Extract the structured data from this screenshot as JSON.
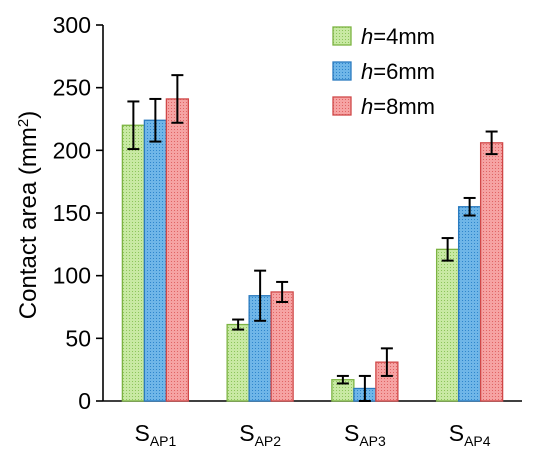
{
  "chart_data": {
    "type": "bar",
    "ylabel": "Contact area (mm²)",
    "ylabel_parts": {
      "main": "Contact area (mm",
      "sup": "2",
      "close": ")"
    },
    "ylim": [
      0,
      300
    ],
    "yticks": [
      0,
      50,
      100,
      150,
      200,
      250,
      300
    ],
    "grid": false,
    "legend_position": "top-right",
    "categories": [
      {
        "main": "S",
        "sub": "AP1"
      },
      {
        "main": "S",
        "sub": "AP2"
      },
      {
        "main": "S",
        "sub": "AP3"
      },
      {
        "main": "S",
        "sub": "AP4"
      }
    ],
    "series": [
      {
        "name": "h=4mm",
        "var": "h",
        "rest": "=4mm",
        "fill": "#b9e08f",
        "stroke": "#7cb342",
        "values": [
          220,
          61,
          17,
          121
        ],
        "errors": [
          19,
          4,
          3,
          9
        ]
      },
      {
        "name": "h=6mm",
        "var": "h",
        "rest": "=6mm",
        "fill": "#5aa8df",
        "stroke": "#2b7bbf",
        "values": [
          224,
          84,
          10,
          155
        ],
        "errors": [
          17,
          20,
          10,
          7
        ]
      },
      {
        "name": "h=8mm",
        "var": "h",
        "rest": "=8mm",
        "fill": "#f28c8c",
        "stroke": "#d04848",
        "values": [
          241,
          87,
          31,
          206
        ],
        "errors": [
          19,
          8,
          11,
          9
        ]
      }
    ]
  }
}
